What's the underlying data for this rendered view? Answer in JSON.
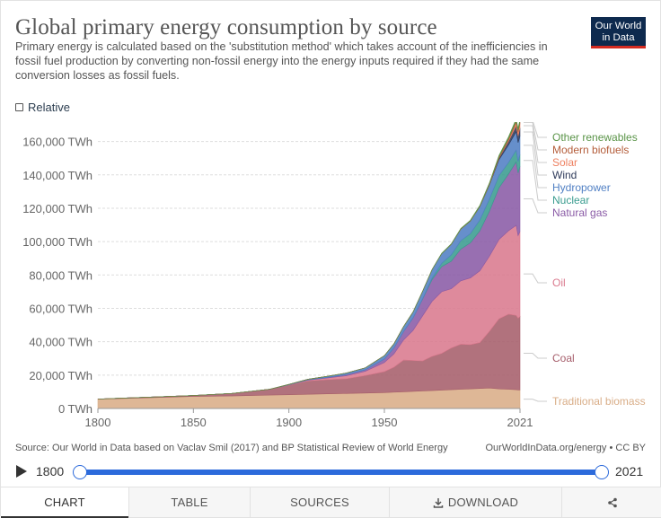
{
  "header": {
    "title": "Global primary energy consumption by source",
    "subtitle": "Primary energy is calculated based on the 'substitution method' which takes account of the inefficiencies in fossil fuel production by converting non-fossil energy into the energy inputs required if they had the same conversion losses as fossil fuels.",
    "logo_line1": "Our World",
    "logo_line2": "in Data"
  },
  "controls": {
    "relative_label": "Relative",
    "relative_checked": false
  },
  "footer": {
    "source": "Source: Our World in Data based on Vaclav Smil (2017) and BP Statistical Review of World Energy",
    "license": "OurWorldInData.org/energy • CC BY"
  },
  "timeline": {
    "start": "1800",
    "end": "2021"
  },
  "tabs": [
    {
      "label": "CHART",
      "icon": "",
      "active": true
    },
    {
      "label": "TABLE",
      "icon": "",
      "active": false
    },
    {
      "label": "SOURCES",
      "icon": "",
      "active": false
    },
    {
      "label": "DOWNLOAD",
      "icon": "download-icon",
      "active": false
    },
    {
      "label": "",
      "icon": "share-icon",
      "active": false
    }
  ],
  "chart_data": {
    "type": "area",
    "stacked": true,
    "xlim": [
      1800,
      2021
    ],
    "ylim": [
      0,
      170000
    ],
    "x_ticks": [
      1800,
      1850,
      1900,
      1950,
      2021
    ],
    "x_tick_labels": [
      "1800",
      "1850",
      "1900",
      "1950",
      "2021"
    ],
    "y_ticks": [
      0,
      20000,
      40000,
      60000,
      80000,
      100000,
      120000,
      140000,
      160000
    ],
    "y_tick_labels": [
      "0 TWh",
      "20,000 TWh",
      "40,000 TWh",
      "60,000 TWh",
      "80,000 TWh",
      "100,000 TWh",
      "120,000 TWh",
      "140,000 TWh",
      "160,000 TWh"
    ],
    "grid": true,
    "legend": "right",
    "x": [
      1800,
      1850,
      1870,
      1880,
      1890,
      1900,
      1910,
      1920,
      1930,
      1940,
      1950,
      1955,
      1960,
      1965,
      1970,
      1975,
      1980,
      1985,
      1990,
      1995,
      2000,
      2005,
      2010,
      2015,
      2019,
      2020,
      2021
    ],
    "series": [
      {
        "name": "Traditional biomass",
        "color": "#d9ad87",
        "values": [
          5556,
          7222,
          7500,
          7750,
          8000,
          8250,
          8500,
          8750,
          9000,
          9250,
          9500,
          9750,
          10000,
          10250,
          10500,
          10750,
          11000,
          11250,
          11500,
          11750,
          12000,
          12250,
          11750,
          11500,
          11250,
          11111,
          11111
        ]
      },
      {
        "name": "Coal",
        "color": "#a65e6b",
        "values": [
          97,
          570,
          1500,
          2500,
          3500,
          5728,
          8000,
          8500,
          8800,
          10500,
          12603,
          15000,
          19000,
          18500,
          18000,
          20500,
          22000,
          25000,
          27000,
          26500,
          27500,
          34000,
          42000,
          45000,
          44500,
          43000,
          44000
        ]
      },
      {
        "name": "Oil",
        "color": "#da7a8e",
        "values": [
          0,
          0,
          2,
          10,
          50,
          181,
          500,
          1000,
          1800,
          2500,
          5444,
          8000,
          12000,
          18000,
          27000,
          33000,
          37000,
          35500,
          38000,
          40000,
          43000,
          45000,
          47500,
          50000,
          54000,
          49500,
          51000
        ]
      },
      {
        "name": "Natural gas",
        "color": "#8a5ba6",
        "values": [
          0,
          0,
          0,
          0,
          0,
          64,
          200,
          400,
          700,
          900,
          2092,
          3500,
          5000,
          7500,
          10000,
          13000,
          15000,
          16500,
          19000,
          21000,
          24000,
          27000,
          31000,
          34000,
          38000,
          37500,
          39000
        ]
      },
      {
        "name": "Nuclear",
        "color": "#3a9c8f",
        "values": [
          0,
          0,
          0,
          0,
          0,
          0,
          0,
          0,
          0,
          0,
          0,
          0,
          0,
          30,
          200,
          1000,
          2000,
          3800,
          5000,
          5500,
          6500,
          7200,
          7300,
          6900,
          7100,
          6900,
          7000
        ]
      },
      {
        "name": "Hydropower",
        "color": "#5180c4",
        "values": [
          0,
          0,
          0,
          0,
          0,
          200,
          300,
          600,
          900,
          1200,
          2000,
          2500,
          3000,
          3500,
          4500,
          5000,
          5800,
          6300,
          7000,
          7500,
          8000,
          8500,
          9500,
          10500,
          11000,
          11300,
          11200
        ]
      },
      {
        "name": "Wind",
        "color": "#2e3a5a",
        "values": [
          0,
          0,
          0,
          0,
          0,
          0,
          0,
          0,
          0,
          0,
          0,
          0,
          0,
          0,
          0,
          0,
          0,
          0,
          0,
          10,
          80,
          300,
          900,
          2200,
          3600,
          4000,
          4800
        ]
      },
      {
        "name": "Solar",
        "color": "#ee8060",
        "values": [
          0,
          0,
          0,
          0,
          0,
          0,
          0,
          0,
          0,
          0,
          0,
          0,
          0,
          0,
          0,
          0,
          0,
          0,
          0,
          0,
          5,
          20,
          80,
          700,
          1800,
          2200,
          2700
        ]
      },
      {
        "name": "Modern biofuels",
        "color": "#b45d3a",
        "values": [
          0,
          0,
          0,
          0,
          0,
          0,
          0,
          0,
          0,
          0,
          0,
          0,
          0,
          0,
          0,
          0,
          10,
          50,
          100,
          150,
          200,
          400,
          800,
          1000,
          1100,
          1100,
          1150
        ]
      },
      {
        "name": "Other renewables",
        "color": "#5a9448",
        "values": [
          0,
          0,
          0,
          0,
          0,
          0,
          0,
          0,
          0,
          0,
          0,
          0,
          0,
          50,
          100,
          150,
          200,
          250,
          300,
          400,
          500,
          600,
          800,
          1000,
          1200,
          1300,
          1400
        ]
      }
    ],
    "legend_order": [
      "Other renewables",
      "Modern biofuels",
      "Solar",
      "Wind",
      "Hydropower",
      "Nuclear",
      "Natural gas",
      "Oil",
      "Coal",
      "Traditional biomass"
    ]
  }
}
